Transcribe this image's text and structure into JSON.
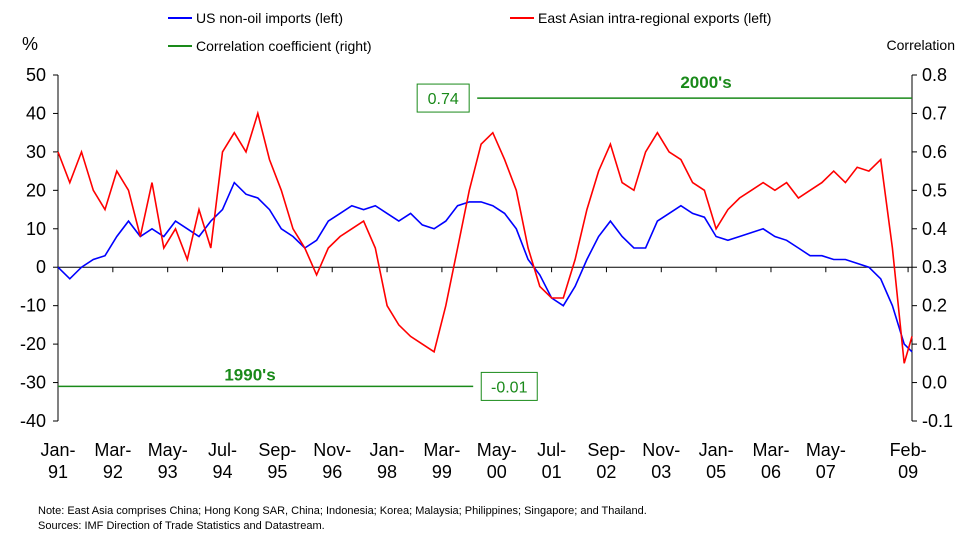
{
  "chart_data": {
    "type": "line",
    "y_unit_label": "%",
    "y2_unit_label": "Correlation",
    "x": [
      "1991-01",
      "1991-04",
      "1991-07",
      "1991-10",
      "1992-01",
      "1992-04",
      "1992-07",
      "1992-10",
      "1993-01",
      "1993-04",
      "1993-07",
      "1993-10",
      "1994-01",
      "1994-04",
      "1994-07",
      "1994-10",
      "1995-01",
      "1995-04",
      "1995-07",
      "1995-10",
      "1996-01",
      "1996-04",
      "1996-07",
      "1996-10",
      "1997-01",
      "1997-04",
      "1997-07",
      "1997-10",
      "1998-01",
      "1998-04",
      "1998-07",
      "1998-10",
      "1999-01",
      "1999-04",
      "1999-07",
      "1999-10",
      "2000-01",
      "2000-04",
      "2000-07",
      "2000-10",
      "2001-01",
      "2001-04",
      "2001-07",
      "2001-10",
      "2002-01",
      "2002-04",
      "2002-07",
      "2002-10",
      "2003-01",
      "2003-04",
      "2003-07",
      "2003-10",
      "2004-01",
      "2004-04",
      "2004-07",
      "2004-10",
      "2005-01",
      "2005-04",
      "2005-07",
      "2005-10",
      "2006-01",
      "2006-04",
      "2006-07",
      "2006-10",
      "2007-01",
      "2007-04",
      "2007-07",
      "2007-10",
      "2008-01",
      "2008-04",
      "2008-07",
      "2008-10",
      "2009-01",
      "2009-03"
    ],
    "xlim": [
      "1991-01",
      "2009-03"
    ],
    "xticks": [
      {
        "value": "1991-01",
        "label": "Jan-\n91"
      },
      {
        "value": "1992-03",
        "label": "Mar-\n92"
      },
      {
        "value": "1993-05",
        "label": "May-\n93"
      },
      {
        "value": "1994-07",
        "label": "Jul-\n94"
      },
      {
        "value": "1995-09",
        "label": "Sep-\n95"
      },
      {
        "value": "1996-11",
        "label": "Nov-\n96"
      },
      {
        "value": "1998-01",
        "label": "Jan-\n98"
      },
      {
        "value": "1999-03",
        "label": "Mar-\n99"
      },
      {
        "value": "2000-05",
        "label": "May-\n00"
      },
      {
        "value": "2001-07",
        "label": "Jul-\n01"
      },
      {
        "value": "2002-09",
        "label": "Sep-\n02"
      },
      {
        "value": "2003-11",
        "label": "Nov-\n03"
      },
      {
        "value": "2005-01",
        "label": "Jan-\n05"
      },
      {
        "value": "2006-03",
        "label": "Mar-\n06"
      },
      {
        "value": "2007-05",
        "label": "May-\n07"
      },
      {
        "value": "2009-02",
        "label": "Feb-\n09"
      }
    ],
    "ylim": [
      -40,
      50
    ],
    "yticks": [
      -40,
      -30,
      -20,
      -10,
      0,
      10,
      20,
      30,
      40,
      50
    ],
    "y2lim": [
      -0.1,
      0.8
    ],
    "y2ticks": [
      -0.1,
      0.0,
      0.1,
      0.2,
      0.3,
      0.4,
      0.5,
      0.6,
      0.7,
      0.8
    ],
    "y2tick_labels": [
      "-0.1",
      "0.0",
      "0.1",
      "0.2",
      "0.3",
      "0.4",
      "0.5",
      "0.6",
      "0.7",
      "0.8"
    ],
    "series": [
      {
        "name": "US non-oil imports (left)",
        "color": "#0000ff",
        "values": [
          0,
          -3,
          0,
          2,
          3,
          8,
          12,
          8,
          10,
          8,
          12,
          10,
          8,
          12,
          15,
          22,
          19,
          18,
          15,
          10,
          8,
          5,
          7,
          12,
          14,
          16,
          15,
          16,
          14,
          12,
          14,
          11,
          10,
          12,
          16,
          17,
          17,
          16,
          14,
          10,
          2,
          -2,
          -8,
          -10,
          -5,
          2,
          8,
          12,
          8,
          5,
          5,
          12,
          14,
          16,
          14,
          13,
          8,
          7,
          8,
          9,
          10,
          8,
          7,
          5,
          3,
          3,
          2,
          2,
          1,
          0,
          -3,
          -10,
          -20,
          -22
        ]
      },
      {
        "name": "East Asian intra-regional exports (left)",
        "color": "#ff0000",
        "values": [
          30,
          22,
          30,
          20,
          15,
          25,
          20,
          8,
          22,
          5,
          10,
          2,
          15,
          5,
          30,
          35,
          30,
          40,
          28,
          20,
          10,
          5,
          -2,
          5,
          8,
          10,
          12,
          5,
          -10,
          -15,
          -18,
          -20,
          -22,
          -10,
          5,
          20,
          32,
          35,
          28,
          20,
          5,
          -5,
          -8,
          -8,
          2,
          15,
          25,
          32,
          22,
          20,
          30,
          35,
          30,
          28,
          22,
          20,
          10,
          15,
          18,
          20,
          22,
          20,
          22,
          18,
          20,
          22,
          25,
          22,
          26,
          25,
          28,
          5,
          -25,
          -18
        ]
      },
      {
        "name": "Correlation coefficient (right)",
        "color": "#1a8a1a",
        "axis": "y2",
        "x": [
          "1991-01",
          "1999-11",
          "1999-12",
          "1999-12",
          "2009-03"
        ],
        "values": [
          -0.01,
          -0.01,
          null,
          0.74,
          0.74
        ]
      }
    ],
    "annotations": [
      "1990's",
      "2000's"
    ],
    "notes": [
      "Note: East Asia comprises China; Hong Kong SAR, China; Indonesia; Korea; Malaysia; Philippines; Singapore; and Thailand.",
      "Sources: IMF Direction of Trade Statistics and Datastream."
    ]
  }
}
